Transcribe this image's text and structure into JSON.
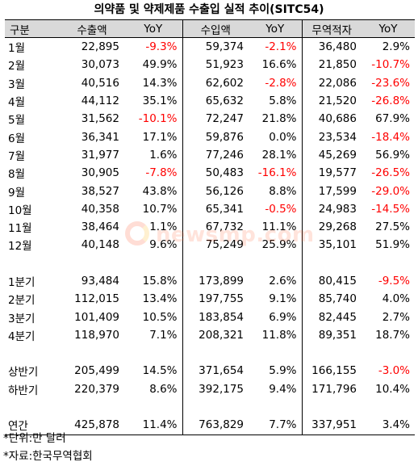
{
  "title": "의약품 및 약제제품 수출입 실적 추이(SITC54)",
  "headers": [
    "구분",
    "수출액",
    "YoY",
    "수입액",
    "YoY",
    "무역적자",
    "YoY"
  ],
  "months": [
    {
      "label": "1월",
      "export": "22,895",
      "export_yoy": "-9.3%",
      "import": "59,374",
      "import_yoy": "-2.1%",
      "deficit": "36,480",
      "deficit_yoy": "2.9%"
    },
    {
      "label": "2월",
      "export": "30,073",
      "export_yoy": "49.9%",
      "import": "51,923",
      "import_yoy": "16.6%",
      "deficit": "21,850",
      "deficit_yoy": "-10.7%"
    },
    {
      "label": "3월",
      "export": "40,516",
      "export_yoy": "14.3%",
      "import": "62,602",
      "import_yoy": "-2.8%",
      "deficit": "22,086",
      "deficit_yoy": "-23.6%"
    },
    {
      "label": "4월",
      "export": "44,112",
      "export_yoy": "35.1%",
      "import": "65,632",
      "import_yoy": "5.8%",
      "deficit": "21,520",
      "deficit_yoy": "-26.8%"
    },
    {
      "label": "5월",
      "export": "31,562",
      "export_yoy": "-10.1%",
      "import": "72,247",
      "import_yoy": "21.8%",
      "deficit": "40,686",
      "deficit_yoy": "67.9%"
    },
    {
      "label": "6월",
      "export": "36,341",
      "export_yoy": "17.1%",
      "import": "59,876",
      "import_yoy": "0.0%",
      "deficit": "23,534",
      "deficit_yoy": "-18.4%"
    },
    {
      "label": "7월",
      "export": "31,977",
      "export_yoy": "1.6%",
      "import": "77,246",
      "import_yoy": "28.1%",
      "deficit": "45,269",
      "deficit_yoy": "56.9%"
    },
    {
      "label": "8월",
      "export": "30,905",
      "export_yoy": "-7.8%",
      "import": "50,483",
      "import_yoy": "-16.1%",
      "deficit": "19,577",
      "deficit_yoy": "-26.5%"
    },
    {
      "label": "9월",
      "export": "38,527",
      "export_yoy": "43.8%",
      "import": "56,126",
      "import_yoy": "8.8%",
      "deficit": "17,599",
      "deficit_yoy": "-29.0%"
    },
    {
      "label": "10월",
      "export": "40,358",
      "export_yoy": "10.7%",
      "import": "65,341",
      "import_yoy": "-0.5%",
      "deficit": "24,983",
      "deficit_yoy": "-14.5%"
    },
    {
      "label": "11월",
      "export": "38,464",
      "export_yoy": "1.1%",
      "import": "67,732",
      "import_yoy": "11.1%",
      "deficit": "29,268",
      "deficit_yoy": "27.5%"
    },
    {
      "label": "12월",
      "export": "40,148",
      "export_yoy": "9.6%",
      "import": "75,249",
      "import_yoy": "25.9%",
      "deficit": "35,101",
      "deficit_yoy": "51.9%"
    }
  ],
  "quarters": [
    {
      "label": "1분기",
      "export": "93,484",
      "export_yoy": "15.8%",
      "import": "173,899",
      "import_yoy": "2.6%",
      "deficit": "80,415",
      "deficit_yoy": "-9.5%"
    },
    {
      "label": "2분기",
      "export": "112,015",
      "export_yoy": "13.4%",
      "import": "197,755",
      "import_yoy": "9.1%",
      "deficit": "85,740",
      "deficit_yoy": "4.0%"
    },
    {
      "label": "3분기",
      "export": "101,409",
      "export_yoy": "10.5%",
      "import": "183,854",
      "import_yoy": "6.9%",
      "deficit": "82,445",
      "deficit_yoy": "2.7%"
    },
    {
      "label": "4분기",
      "export": "118,970",
      "export_yoy": "7.1%",
      "import": "208,321",
      "import_yoy": "11.8%",
      "deficit": "89,351",
      "deficit_yoy": "18.7%"
    }
  ],
  "halves": [
    {
      "label": "상반기",
      "export": "205,499",
      "export_yoy": "14.5%",
      "import": "371,654",
      "import_yoy": "5.9%",
      "deficit": "166,155",
      "deficit_yoy": "-3.0%"
    },
    {
      "label": "하반기",
      "export": "220,379",
      "export_yoy": "8.6%",
      "import": "392,175",
      "import_yoy": "9.4%",
      "deficit": "171,796",
      "deficit_yoy": "10.4%"
    }
  ],
  "annual": [
    {
      "label": "연간",
      "export": "425,878",
      "export_yoy": "11.4%",
      "import": "763,829",
      "import_yoy": "7.7%",
      "deficit": "337,951",
      "deficit_yoy": "3.4%"
    }
  ],
  "footnotes": {
    "unit": "*단위:만 달러",
    "source": "*자료:한국무역협회"
  },
  "watermark": {
    "text": "newsmp.com",
    "icon": "newsmp-logo-icon"
  },
  "colors": {
    "header_bg": "#d9d9d9",
    "negative": "#ff0000",
    "watermark": "#ff6a3d"
  }
}
